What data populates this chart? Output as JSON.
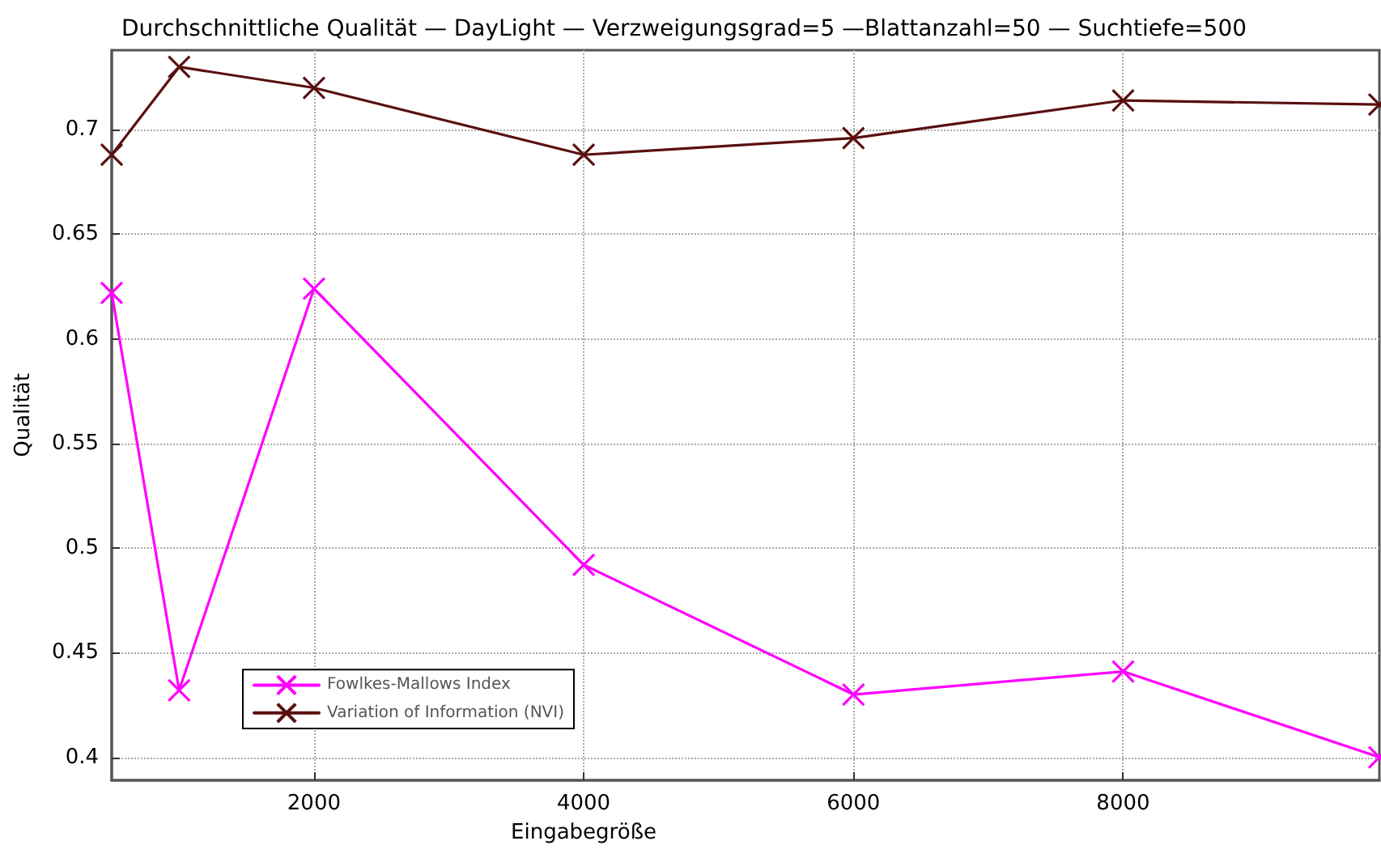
{
  "chart_data": {
    "type": "line",
    "title": "Durchschnittliche Qualität — DayLight — Verzweigungsgrad=5 —Blattanzahl=50 — Suchtiefe=500",
    "xlabel": "Eingabegröße",
    "ylabel": "Qualität",
    "x": [
      500,
      1000,
      2000,
      4000,
      6000,
      8000,
      9900
    ],
    "series": [
      {
        "name": "Fowlkes-Mallows Index",
        "color": "#ff00ff",
        "values": [
          0.622,
          0.432,
          0.624,
          0.492,
          0.43,
          0.441,
          0.4
        ]
      },
      {
        "name": "Variation of Information (NVI)",
        "color": "#5a0f0f",
        "values": [
          0.688,
          0.73,
          0.72,
          0.688,
          0.696,
          0.714,
          0.712
        ]
      }
    ],
    "xlim": [
      500,
      9900
    ],
    "xticks": [
      2000,
      4000,
      6000,
      8000
    ],
    "ylim": [
      0.389,
      0.738
    ],
    "yticks": [
      0.4,
      0.45,
      0.5,
      0.55,
      0.6,
      0.65,
      0.7
    ],
    "grid": true,
    "legend": "bottom left",
    "marker": "cross",
    "line_style": "solid"
  }
}
